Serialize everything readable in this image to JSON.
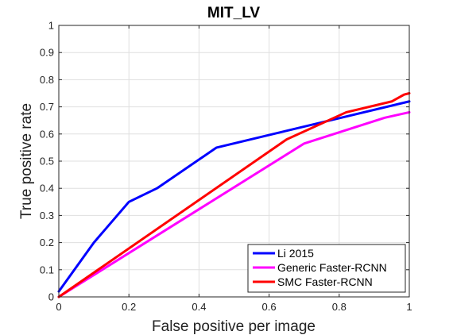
{
  "chart_data": {
    "type": "line",
    "title": "MIT_LV",
    "xlabel": "False positive per image",
    "ylabel": "True positive rate",
    "xlim": [
      0,
      1
    ],
    "ylim": [
      0,
      1
    ],
    "x_ticks": [
      "0",
      "0.2",
      "0.4",
      "0.6",
      "0.8",
      "1"
    ],
    "y_ticks": [
      "0",
      "0.1",
      "0.2",
      "0.3",
      "0.4",
      "0.5",
      "0.6",
      "0.7",
      "0.8",
      "0.9",
      "1"
    ],
    "grid": true,
    "legend_position": "bottom-right",
    "series": [
      {
        "name": "Li 2015",
        "color": "#0000ff",
        "x": [
          0,
          0.1,
          0.2,
          0.28,
          0.45,
          1.0
        ],
        "y": [
          0.02,
          0.2,
          0.35,
          0.4,
          0.55,
          0.72
        ]
      },
      {
        "name": "Generic Faster-RCNN",
        "color": "#ff00ff",
        "x": [
          0,
          0.7,
          0.93,
          1.0
        ],
        "y": [
          0,
          0.565,
          0.66,
          0.68
        ]
      },
      {
        "name": "SMC Faster-RCNN",
        "color": "#ff0000",
        "x": [
          0,
          0.65,
          0.82,
          0.95,
          0.985,
          1.0
        ],
        "y": [
          0,
          0.58,
          0.68,
          0.72,
          0.745,
          0.75
        ]
      }
    ]
  }
}
